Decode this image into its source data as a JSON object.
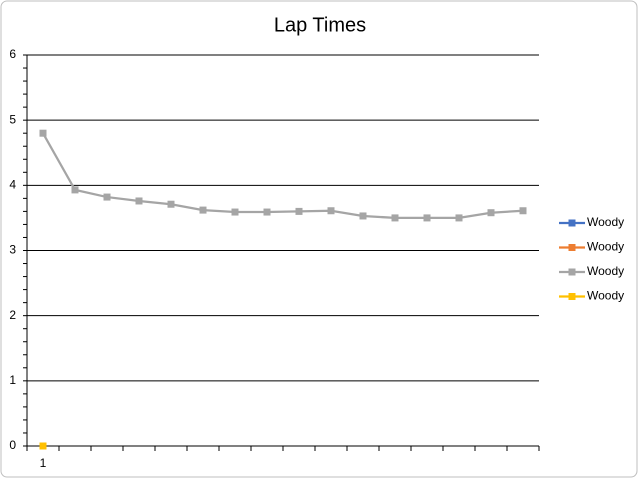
{
  "chart_data": {
    "type": "line",
    "title": "Lap Times",
    "categories": [
      "1",
      null,
      null,
      null,
      null,
      null,
      null,
      null,
      null,
      null,
      null,
      null,
      null,
      null,
      null,
      null
    ],
    "series": [
      {
        "name": "Woody",
        "color": "#4472c4",
        "values": [
          0,
          null,
          null,
          null,
          null,
          null,
          null,
          null,
          null,
          null,
          null,
          null,
          null,
          null,
          null,
          null
        ]
      },
      {
        "name": "Woody",
        "color": "#ed7d31",
        "values": [
          0,
          null,
          null,
          null,
          null,
          null,
          null,
          null,
          null,
          null,
          null,
          null,
          null,
          null,
          null,
          null
        ]
      },
      {
        "name": "Woody",
        "color": "#a5a5a5",
        "values": [
          4.8,
          3.93,
          3.82,
          3.76,
          3.71,
          3.62,
          3.59,
          3.59,
          3.6,
          3.61,
          3.53,
          3.5,
          3.5,
          3.5,
          3.58,
          3.61
        ]
      },
      {
        "name": "Woody",
        "color": "#ffc000",
        "values": [
          0,
          null,
          null,
          null,
          null,
          null,
          null,
          null,
          null,
          null,
          null,
          null,
          null,
          null,
          null,
          null
        ]
      }
    ],
    "ylim": [
      0,
      6
    ],
    "yticks": [
      0,
      1,
      2,
      3,
      4,
      5,
      6
    ],
    "grid": true,
    "legend": "right"
  }
}
